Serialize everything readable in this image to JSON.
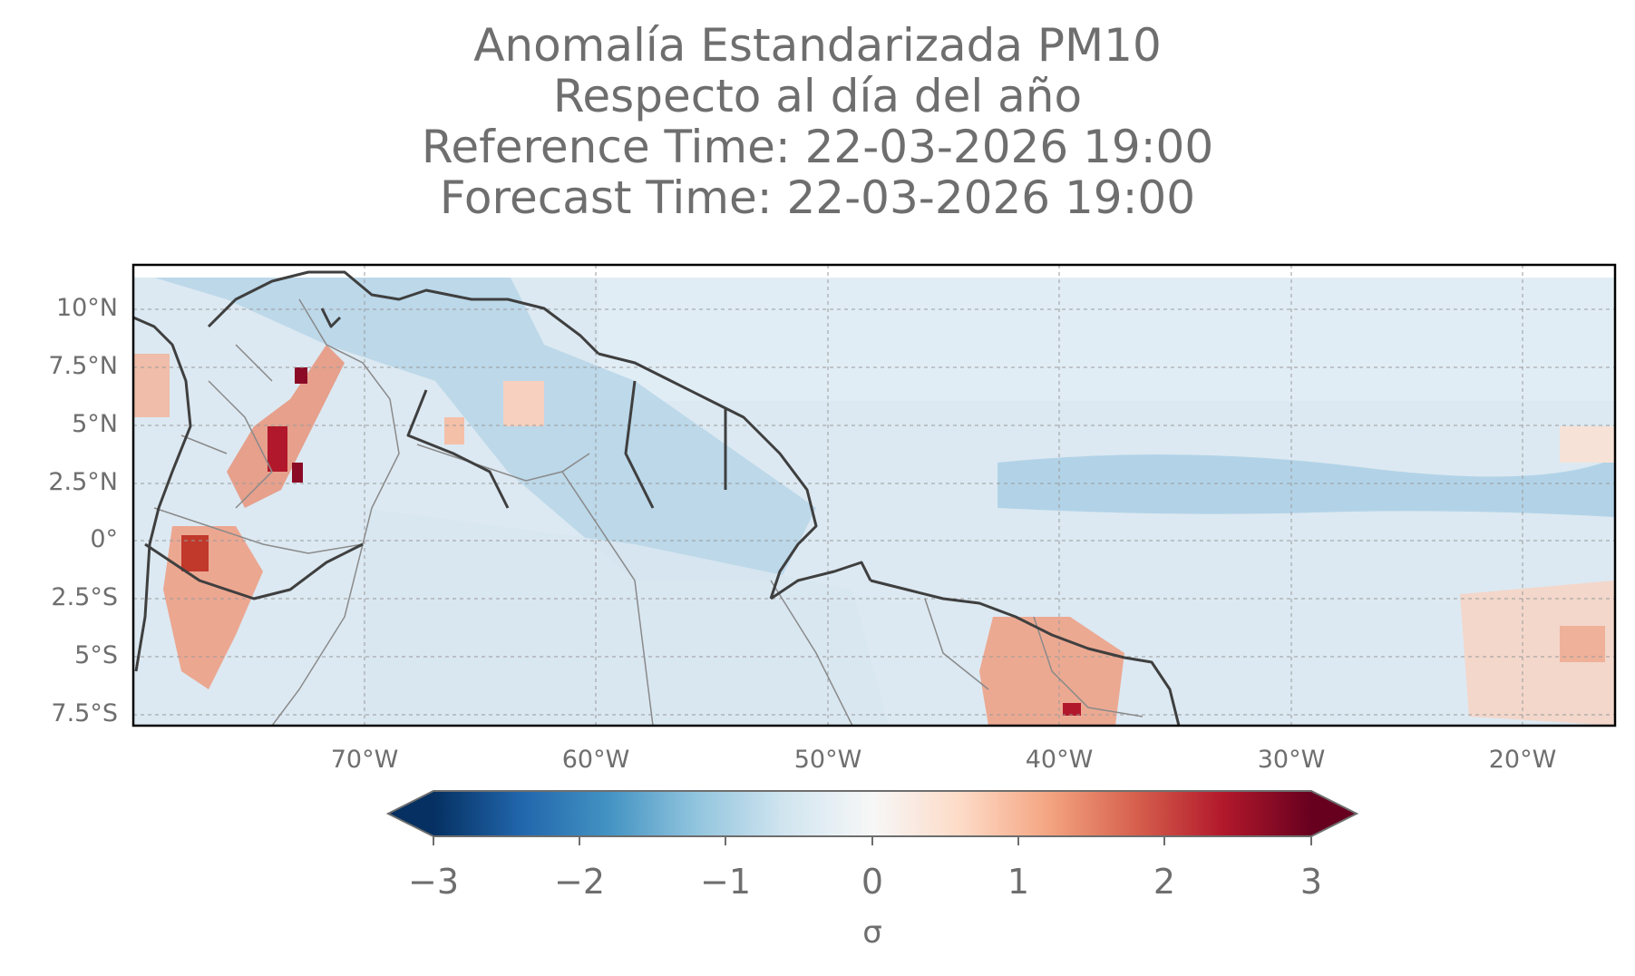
{
  "title_lines": [
    "Anomalía Estandarizada PM10",
    "Respecto al día del año",
    "Reference Time: 22-03-2026 19:00",
    "Forecast Time: 22-03-2026 19:00"
  ],
  "map": {
    "lon_range": [
      -80,
      -16
    ],
    "lat_range": [
      -8,
      11.5
    ],
    "lat_ticks": [
      {
        "value": 10,
        "label": "10°N"
      },
      {
        "value": 7.5,
        "label": "7.5°N"
      },
      {
        "value": 5,
        "label": "5°N"
      },
      {
        "value": 2.5,
        "label": "2.5°N"
      },
      {
        "value": 0,
        "label": "0°"
      },
      {
        "value": -2.5,
        "label": "2.5°S"
      },
      {
        "value": -5,
        "label": "5°S"
      },
      {
        "value": -7.5,
        "label": "7.5°S"
      }
    ],
    "lon_ticks": [
      {
        "value": -70,
        "label": "70°W"
      },
      {
        "value": -60,
        "label": "60°W"
      },
      {
        "value": -50,
        "label": "50°W"
      },
      {
        "value": -40,
        "label": "40°W"
      },
      {
        "value": -30,
        "label": "30°W"
      },
      {
        "value": -20,
        "label": "20°W"
      }
    ],
    "gridlines": true,
    "colormap": "RdBu_r"
  },
  "colorbar": {
    "range": [
      -3,
      3
    ],
    "ticks": [
      "−3",
      "−2",
      "−1",
      "0",
      "1",
      "2",
      "3"
    ],
    "label": "σ",
    "extend": "both"
  },
  "colors": {
    "text": "#6e6e6e",
    "coast": "#3a3a3a",
    "border": "#8a8a8a"
  }
}
